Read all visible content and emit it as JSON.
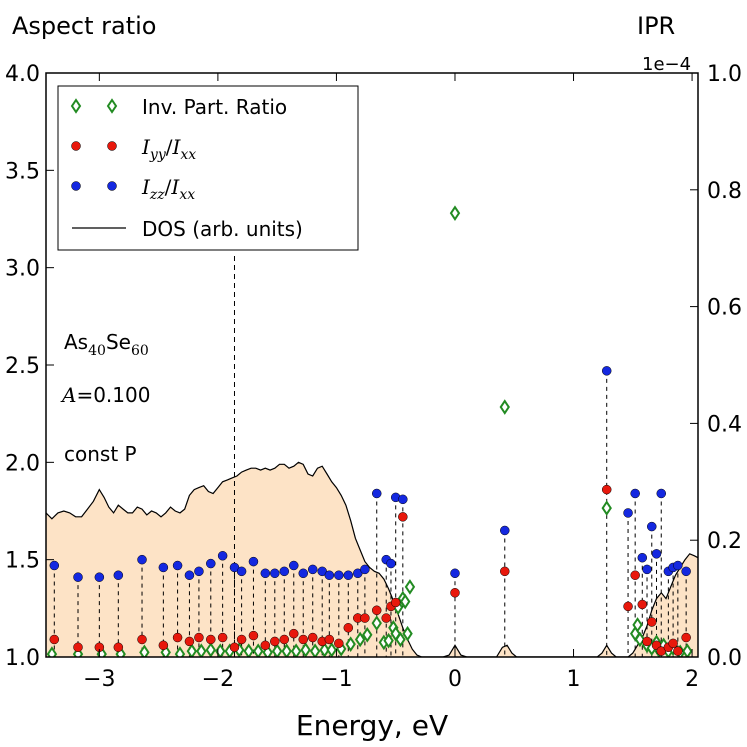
{
  "chart_data": {
    "type": "scatter",
    "title_left": "Aspect ratio",
    "title_right": "IPR",
    "right_axis_exponent": "1e−4",
    "xlabel": "Energy, eV",
    "xlim": [
      -3.45,
      2.05
    ],
    "ylim_left": [
      1.0,
      4.0
    ],
    "ylim_right": [
      0.0,
      1.0
    ],
    "x_ticks": [
      -3,
      -2,
      -1,
      0,
      1,
      2
    ],
    "x_tick_labels": [
      "−3",
      "−2",
      "−1",
      "0",
      "1",
      "2"
    ],
    "y_left_ticks": [
      1.0,
      1.5,
      2.0,
      2.5,
      3.0,
      3.5,
      4.0
    ],
    "y_left_tick_labels": [
      "1.0",
      "1.5",
      "2.0",
      "2.5",
      "3.0",
      "3.5",
      "4.0"
    ],
    "y_right_ticks": [
      0.0,
      0.2,
      0.4,
      0.6,
      0.8,
      1.0
    ],
    "y_right_tick_labels": [
      "0.0",
      "0.2",
      "0.4",
      "0.6",
      "0.8",
      "1.0"
    ],
    "annotations": {
      "composition": {
        "el1": "As",
        "sub1": "40",
        "el2": "Se",
        "sub2": "60"
      },
      "amplitude": {
        "symbol": "A",
        "text": "=0.100"
      },
      "condition": "const P"
    },
    "fermi_line_energy": -1.86,
    "legend": {
      "ipr": "Inv. Part. Ratio",
      "iyy": {
        "base": "I",
        "sub_num": "yy",
        "sep": "/",
        "base2": "I",
        "sub_den": "xx"
      },
      "izz": {
        "base": "I",
        "sub_num": "zz",
        "sep": "/",
        "base2": "I",
        "sub_den": "xx"
      },
      "dos": "DOS (arb. units)"
    },
    "colors": {
      "ipr": "#228b22",
      "iyy": "#e8180c",
      "izz": "#1428e0",
      "dos_fill": "#fde3c6",
      "dos_line": "#000000"
    },
    "states": [
      {
        "e": -3.38,
        "iyy": 1.09,
        "izz": 1.47
      },
      {
        "e": -3.18,
        "iyy": 1.05,
        "izz": 1.41
      },
      {
        "e": -3.0,
        "iyy": 1.05,
        "izz": 1.41
      },
      {
        "e": -2.84,
        "iyy": 1.05,
        "izz": 1.42
      },
      {
        "e": -2.64,
        "iyy": 1.09,
        "izz": 1.5
      },
      {
        "e": -2.46,
        "iyy": 1.06,
        "izz": 1.46
      },
      {
        "e": -2.34,
        "iyy": 1.1,
        "izz": 1.47
      },
      {
        "e": -2.24,
        "iyy": 1.08,
        "izz": 1.42
      },
      {
        "e": -2.16,
        "iyy": 1.1,
        "izz": 1.44
      },
      {
        "e": -2.06,
        "iyy": 1.09,
        "izz": 1.48
      },
      {
        "e": -1.96,
        "iyy": 1.1,
        "izz": 1.52
      },
      {
        "e": -1.86,
        "iyy": 1.05,
        "izz": 1.46
      },
      {
        "e": -1.8,
        "iyy": 1.09,
        "izz": 1.44
      },
      {
        "e": -1.7,
        "iyy": 1.11,
        "izz": 1.49
      },
      {
        "e": -1.6,
        "iyy": 1.06,
        "izz": 1.43
      },
      {
        "e": -1.52,
        "iyy": 1.08,
        "izz": 1.43
      },
      {
        "e": -1.44,
        "iyy": 1.09,
        "izz": 1.44
      },
      {
        "e": -1.36,
        "iyy": 1.12,
        "izz": 1.47
      },
      {
        "e": -1.28,
        "iyy": 1.09,
        "izz": 1.43
      },
      {
        "e": -1.2,
        "iyy": 1.1,
        "izz": 1.45
      },
      {
        "e": -1.12,
        "iyy": 1.08,
        "izz": 1.44
      },
      {
        "e": -1.06,
        "iyy": 1.09,
        "izz": 1.42
      },
      {
        "e": -0.98,
        "iyy": 1.07,
        "izz": 1.42
      },
      {
        "e": -0.9,
        "iyy": 1.15,
        "izz": 1.42
      },
      {
        "e": -0.82,
        "iyy": 1.2,
        "izz": 1.43
      },
      {
        "e": -0.76,
        "iyy": 1.2,
        "izz": 1.45
      },
      {
        "e": -0.66,
        "iyy": 1.24,
        "izz": 1.84
      },
      {
        "e": -0.58,
        "iyy": 1.2,
        "izz": 1.5
      },
      {
        "e": -0.54,
        "iyy": 1.26,
        "izz": 1.48
      },
      {
        "e": -0.5,
        "iyy": 1.28,
        "izz": 1.82
      },
      {
        "e": -0.44,
        "iyy": 1.72,
        "izz": 1.81
      },
      {
        "e": 0.0,
        "iyy": 1.33,
        "izz": 1.43
      },
      {
        "e": 0.42,
        "iyy": 1.44,
        "izz": 1.65
      },
      {
        "e": 1.28,
        "iyy": 1.86,
        "izz": 2.47
      },
      {
        "e": 1.46,
        "iyy": 1.26,
        "izz": 1.74
      },
      {
        "e": 1.52,
        "iyy": 1.42,
        "izz": 1.84
      },
      {
        "e": 1.58,
        "iyy": 1.27,
        "izz": 1.51
      },
      {
        "e": 1.62,
        "iyy": 1.08,
        "izz": 1.45
      },
      {
        "e": 1.66,
        "iyy": 1.18,
        "izz": 1.67
      },
      {
        "e": 1.7,
        "iyy": 1.06,
        "izz": 1.53
      },
      {
        "e": 1.74,
        "iyy": 1.03,
        "izz": 1.84
      },
      {
        "e": 1.8,
        "iyy": 1.05,
        "izz": 1.44
      },
      {
        "e": 1.84,
        "iyy": 1.07,
        "izz": 1.46
      },
      {
        "e": 1.88,
        "iyy": 1.03,
        "izz": 1.47
      },
      {
        "e": 1.95,
        "iyy": 1.1,
        "izz": 1.44
      }
    ],
    "ipr_points": [
      [
        -3.4,
        0.005
      ],
      [
        -3.18,
        0.005
      ],
      [
        -2.98,
        0.005
      ],
      [
        -2.82,
        0.005
      ],
      [
        -2.62,
        0.008
      ],
      [
        -2.44,
        0.008
      ],
      [
        -2.32,
        0.005
      ],
      [
        -2.22,
        0.01
      ],
      [
        -2.14,
        0.01
      ],
      [
        -2.06,
        0.012
      ],
      [
        -1.98,
        0.01
      ],
      [
        -1.9,
        0.01
      ],
      [
        -1.82,
        0.012
      ],
      [
        -1.74,
        0.01
      ],
      [
        -1.66,
        0.01
      ],
      [
        -1.58,
        0.008
      ],
      [
        -1.5,
        0.01
      ],
      [
        -1.42,
        0.01
      ],
      [
        -1.34,
        0.01
      ],
      [
        -1.26,
        0.012
      ],
      [
        -1.18,
        0.01
      ],
      [
        -1.1,
        0.012
      ],
      [
        -1.04,
        0.012
      ],
      [
        -0.96,
        0.014
      ],
      [
        -0.88,
        0.022
      ],
      [
        -0.8,
        0.03
      ],
      [
        -0.74,
        0.038
      ],
      [
        -0.66,
        0.058
      ],
      [
        -0.6,
        0.025
      ],
      [
        -0.56,
        0.028
      ],
      [
        -0.52,
        0.05
      ],
      [
        -0.5,
        0.04
      ],
      [
        -0.48,
        0.085
      ],
      [
        -0.46,
        0.03
      ],
      [
        -0.44,
        0.1
      ],
      [
        -0.42,
        0.095
      ],
      [
        -0.4,
        0.04
      ],
      [
        -0.38,
        0.12
      ],
      [
        0.0,
        0.76
      ],
      [
        0.42,
        0.428
      ],
      [
        1.28,
        0.255
      ],
      [
        1.52,
        0.04
      ],
      [
        1.54,
        0.055
      ],
      [
        1.56,
        0.03
      ],
      [
        1.62,
        0.02
      ],
      [
        1.66,
        0.015
      ],
      [
        1.7,
        0.025
      ],
      [
        1.72,
        0.012
      ],
      [
        1.76,
        0.02
      ],
      [
        1.8,
        0.01
      ],
      [
        1.84,
        0.015
      ],
      [
        1.9,
        0.008
      ],
      [
        1.96,
        0.01
      ]
    ],
    "dos_curve": [
      [
        -3.45,
        1.74
      ],
      [
        -3.4,
        1.71
      ],
      [
        -3.35,
        1.74
      ],
      [
        -3.3,
        1.75
      ],
      [
        -3.25,
        1.74
      ],
      [
        -3.2,
        1.72
      ],
      [
        -3.15,
        1.72
      ],
      [
        -3.1,
        1.76
      ],
      [
        -3.05,
        1.8
      ],
      [
        -3.0,
        1.86
      ],
      [
        -2.96,
        1.82
      ],
      [
        -2.92,
        1.77
      ],
      [
        -2.88,
        1.74
      ],
      [
        -2.84,
        1.78
      ],
      [
        -2.8,
        1.76
      ],
      [
        -2.76,
        1.74
      ],
      [
        -2.72,
        1.74
      ],
      [
        -2.68,
        1.77
      ],
      [
        -2.64,
        1.76
      ],
      [
        -2.6,
        1.73
      ],
      [
        -2.56,
        1.75
      ],
      [
        -2.52,
        1.74
      ],
      [
        -2.48,
        1.72
      ],
      [
        -2.44,
        1.74
      ],
      [
        -2.4,
        1.77
      ],
      [
        -2.36,
        1.75
      ],
      [
        -2.32,
        1.74
      ],
      [
        -2.28,
        1.76
      ],
      [
        -2.24,
        1.83
      ],
      [
        -2.2,
        1.86
      ],
      [
        -2.16,
        1.87
      ],
      [
        -2.12,
        1.88
      ],
      [
        -2.08,
        1.85
      ],
      [
        -2.04,
        1.84
      ],
      [
        -2.0,
        1.87
      ],
      [
        -1.96,
        1.9
      ],
      [
        -1.92,
        1.91
      ],
      [
        -1.88,
        1.92
      ],
      [
        -1.84,
        1.93
      ],
      [
        -1.8,
        1.95
      ],
      [
        -1.76,
        1.96
      ],
      [
        -1.72,
        1.97
      ],
      [
        -1.68,
        1.97
      ],
      [
        -1.64,
        1.96
      ],
      [
        -1.6,
        1.97
      ],
      [
        -1.56,
        1.96
      ],
      [
        -1.52,
        1.97
      ],
      [
        -1.48,
        1.99
      ],
      [
        -1.44,
        1.99
      ],
      [
        -1.4,
        1.97
      ],
      [
        -1.36,
        1.98
      ],
      [
        -1.32,
        2.0
      ],
      [
        -1.28,
        1.99
      ],
      [
        -1.24,
        1.94
      ],
      [
        -1.2,
        1.93
      ],
      [
        -1.16,
        1.97
      ],
      [
        -1.12,
        1.98
      ],
      [
        -1.08,
        1.94
      ],
      [
        -1.04,
        1.9
      ],
      [
        -1.0,
        1.87
      ],
      [
        -0.96,
        1.83
      ],
      [
        -0.92,
        1.78
      ],
      [
        -0.88,
        1.7
      ],
      [
        -0.84,
        1.61
      ],
      [
        -0.8,
        1.55
      ],
      [
        -0.76,
        1.49
      ],
      [
        -0.72,
        1.46
      ],
      [
        -0.68,
        1.44
      ],
      [
        -0.64,
        1.43
      ],
      [
        -0.6,
        1.4
      ],
      [
        -0.56,
        1.35
      ],
      [
        -0.52,
        1.29
      ],
      [
        -0.48,
        1.22
      ],
      [
        -0.44,
        1.15
      ],
      [
        -0.4,
        1.09
      ],
      [
        -0.36,
        1.04
      ],
      [
        -0.32,
        1.01
      ],
      [
        -0.28,
        1.0
      ],
      [
        -0.1,
        1.0
      ],
      [
        -0.05,
        1.01
      ],
      [
        0.0,
        1.06
      ],
      [
        0.05,
        1.01
      ],
      [
        0.1,
        1.0
      ],
      [
        0.35,
        1.0
      ],
      [
        0.4,
        1.05
      ],
      [
        0.44,
        1.06
      ],
      [
        0.48,
        1.02
      ],
      [
        0.52,
        1.0
      ],
      [
        1.2,
        1.0
      ],
      [
        1.24,
        1.02
      ],
      [
        1.28,
        1.06
      ],
      [
        1.32,
        1.02
      ],
      [
        1.36,
        1.0
      ],
      [
        1.46,
        1.0
      ],
      [
        1.5,
        1.02
      ],
      [
        1.54,
        1.06
      ],
      [
        1.58,
        1.1
      ],
      [
        1.62,
        1.16
      ],
      [
        1.66,
        1.24
      ],
      [
        1.7,
        1.3
      ],
      [
        1.74,
        1.33
      ],
      [
        1.78,
        1.3
      ],
      [
        1.82,
        1.36
      ],
      [
        1.86,
        1.42
      ],
      [
        1.9,
        1.46
      ],
      [
        1.94,
        1.5
      ],
      [
        1.98,
        1.53
      ],
      [
        2.02,
        1.52
      ],
      [
        2.05,
        1.51
      ]
    ]
  }
}
